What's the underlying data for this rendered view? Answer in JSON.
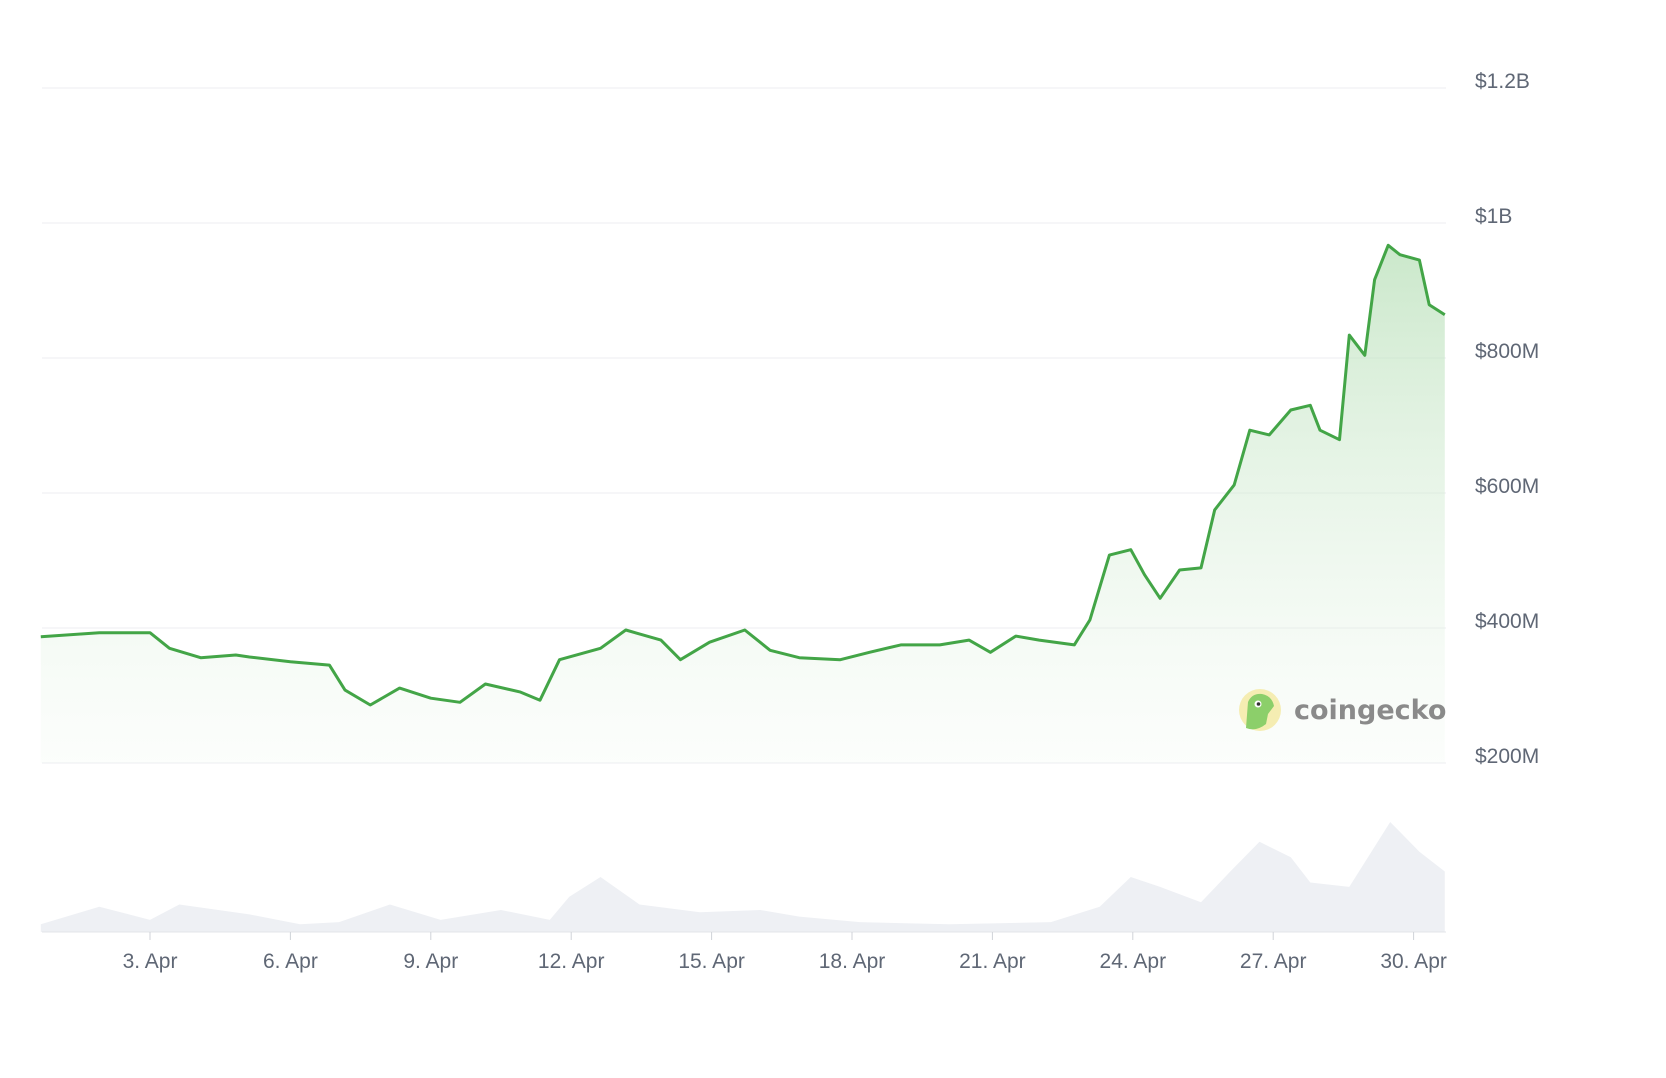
{
  "chart_data": {
    "type": "area",
    "title": "",
    "xlabel": "",
    "ylabel": "",
    "ylim": [
      200,
      1200
    ],
    "y_unit": "USD millions",
    "y_ticks": [
      {
        "value": 1200,
        "label": "$1.2B"
      },
      {
        "value": 1000,
        "label": "$1B"
      },
      {
        "value": 800,
        "label": "$800M"
      },
      {
        "value": 600,
        "label": "$600M"
      },
      {
        "value": 400,
        "label": "$400M"
      },
      {
        "value": 200,
        "label": "$200M"
      }
    ],
    "x_ticks": [
      {
        "date": "04-03 00:00",
        "label": "3. Apr"
      },
      {
        "date": "04-06 00:00",
        "label": "6. Apr"
      },
      {
        "date": "04-09 00:00",
        "label": "9. Apr"
      },
      {
        "date": "04-12 00:00",
        "label": "12. Apr"
      },
      {
        "date": "04-15 00:00",
        "label": "15. Apr"
      },
      {
        "date": "04-18 00:00",
        "label": "18. Apr"
      },
      {
        "date": "04-21 00:00",
        "label": "21. Apr"
      },
      {
        "date": "04-24 00:00",
        "label": "24. Apr"
      },
      {
        "date": "04-27 00:00",
        "label": "27. Apr"
      },
      {
        "date": "04-30 00:00",
        "label": "30. Apr"
      }
    ],
    "grid": true,
    "legend": "none",
    "colors": {
      "line": "#43a547",
      "fill": "#cfe9cf",
      "volume": "#eef0f4",
      "grid": "#eceef1",
      "tick_text": "#5f6775"
    },
    "series": [
      {
        "points": [
          [
            "03-31 16:00",
            387
          ],
          [
            "04-01 22:00",
            393
          ],
          [
            "04-03 00:00",
            393
          ],
          [
            "04-03 10:00",
            370
          ],
          [
            "04-04 02:00",
            356
          ],
          [
            "04-04 20:00",
            360
          ],
          [
            "04-05 03:00",
            357
          ],
          [
            "04-06 00:00",
            350
          ],
          [
            "04-06 20:00",
            345
          ],
          [
            "04-07 04:00",
            308
          ],
          [
            "04-07 17:00",
            286
          ],
          [
            "04-08 08:00",
            311
          ],
          [
            "04-09 00:00",
            296
          ],
          [
            "04-09 15:00",
            290
          ],
          [
            "04-10 04:00",
            317
          ],
          [
            "04-10 22:00",
            305
          ],
          [
            "04-11 08:00",
            293
          ],
          [
            "04-11 18:00",
            353
          ],
          [
            "04-12 15:00",
            370
          ],
          [
            "04-13 04:00",
            397
          ],
          [
            "04-13 22:00",
            382
          ],
          [
            "04-14 08:00",
            353
          ],
          [
            "04-14 23:00",
            379
          ],
          [
            "04-15 17:00",
            397
          ],
          [
            "04-16 06:00",
            367
          ],
          [
            "04-16 21:00",
            356
          ],
          [
            "04-17 18:00",
            353
          ],
          [
            "04-18 09:00",
            364
          ],
          [
            "04-19 01:00",
            375
          ],
          [
            "04-19 21:00",
            375
          ],
          [
            "04-20 12:00",
            382
          ],
          [
            "04-20 23:00",
            364
          ],
          [
            "04-21 12:00",
            388
          ],
          [
            "04-22 00:00",
            382
          ],
          [
            "04-22 18:00",
            375
          ],
          [
            "04-23 02:00",
            412
          ],
          [
            "04-23 12:00",
            508
          ],
          [
            "04-23 23:00",
            516
          ],
          [
            "04-24 06:00",
            479
          ],
          [
            "04-24 14:00",
            444
          ],
          [
            "04-25 00:00",
            486
          ],
          [
            "04-25 11:00",
            489
          ],
          [
            "04-25 18:00",
            575
          ],
          [
            "04-26 04:00",
            612
          ],
          [
            "04-26 12:00",
            693
          ],
          [
            "04-26 22:00",
            686
          ],
          [
            "04-27 09:00",
            723
          ],
          [
            "04-27 19:00",
            730
          ],
          [
            "04-28 00:00",
            693
          ],
          [
            "04-28 10:00",
            679
          ],
          [
            "04-28 15:00",
            834
          ],
          [
            "04-28 23:00",
            804
          ],
          [
            "04-29 04:00",
            916
          ],
          [
            "04-29 11:00",
            967
          ],
          [
            "04-29 17:00",
            953
          ],
          [
            "04-30 03:00",
            945
          ],
          [
            "04-30 08:00",
            879
          ],
          [
            "04-30 16:00",
            864
          ]
        ]
      }
    ],
    "volume_relative": [
      [
        "03-31 16:00",
        7
      ],
      [
        "04-01 22:00",
        23
      ],
      [
        "04-03 00:00",
        11
      ],
      [
        "04-03 15:00",
        25
      ],
      [
        "04-05 03:00",
        16
      ],
      [
        "04-06 05:00",
        7
      ],
      [
        "04-07 01:00",
        9
      ],
      [
        "04-08 03:00",
        25
      ],
      [
        "04-09 05:00",
        11
      ],
      [
        "04-10 12:00",
        20
      ],
      [
        "04-11 13:00",
        11
      ],
      [
        "04-11 23:00",
        32
      ],
      [
        "04-12 15:00",
        50
      ],
      [
        "04-13 11:00",
        25
      ],
      [
        "04-14 18:00",
        18
      ],
      [
        "04-16 01:00",
        20
      ],
      [
        "04-16 21:00",
        14
      ],
      [
        "04-18 04:00",
        9
      ],
      [
        "04-20 02:00",
        7
      ],
      [
        "04-22 06:00",
        9
      ],
      [
        "04-23 07:00",
        23
      ],
      [
        "04-23 23:00",
        50
      ],
      [
        "04-24 14:00",
        41
      ],
      [
        "04-25 11:00",
        27
      ],
      [
        "04-26 02:00",
        55
      ],
      [
        "04-26 17:00",
        82
      ],
      [
        "04-27 09:00",
        68
      ],
      [
        "04-27 19:00",
        45
      ],
      [
        "04-28 15:00",
        41
      ],
      [
        "04-29 12:00",
        100
      ],
      [
        "04-30 03:00",
        73
      ],
      [
        "04-30 16:00",
        55
      ]
    ],
    "watermark": "coingecko"
  }
}
